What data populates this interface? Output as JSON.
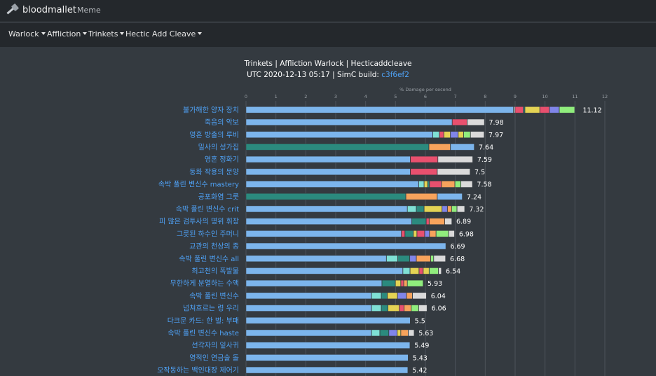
{
  "header": {
    "brand": "bloodmallet",
    "nav_link": "Meme"
  },
  "menus": [
    {
      "label": "Warlock"
    },
    {
      "label": "Affliction"
    },
    {
      "label": "Trinkets"
    },
    {
      "label": "Hectic Add Cleave"
    }
  ],
  "chart_data": {
    "type": "bar",
    "orientation": "horizontal",
    "stacked": true,
    "title": "Trinkets | Affliction Warlock | Hecticaddcleave",
    "subtitle_prefix": "UTC 2020-12-13 05:17 | SimC build: ",
    "build_link": "c3f6ef2",
    "xlabel": "% Damage per second",
    "xlim": [
      0,
      12
    ],
    "xticks": [
      "0",
      "1",
      "2",
      "3",
      "4",
      "5",
      "6",
      "7",
      "8",
      "9",
      "10",
      "11",
      "12"
    ],
    "colors": {
      "base": "#7cb5ec",
      "teal": "#2b8a7e",
      "orange": "#f7a35c",
      "red": "#e8506e",
      "gray": "#dadada",
      "yellow": "#e4d354",
      "lime": "#90ed7d",
      "purple": "#8085e9",
      "cyan": "#7fe0d5",
      "coral": "#f15c80",
      "darkgray": "#9aa0a6"
    },
    "categories": [
      "불가해한 양자 장치",
      "죽음의 악보",
      "영혼 방출의 루비",
      "밀사의 성가집",
      "영혼 정화기",
      "동화 작용의 문양",
      "속박 풀린 변신수 mastery",
      "공포화염 그룻",
      "속박 풀린 변신수 crit",
      "피 많은 검투사의 명위 휘장",
      "그릇된 하수인 주머니",
      "교관의 천상의 종",
      "속박 풀린 변신수 all",
      "최고천의 폭발물",
      "무한하게 분열하는 수액",
      "속박 풀린 변신수",
      "넘쳐흐르는 령 우리",
      "다크문 카드: 한 벌: 부패",
      "속박 풀린 변신수 haste",
      "선각자의 잎사귀",
      "영적인 연금술 돌",
      "오작동하는 백인대장 제어기"
    ],
    "values": [
      11.12,
      7.98,
      7.97,
      7.64,
      7.59,
      7.5,
      7.58,
      7.24,
      7.32,
      6.89,
      6.98,
      6.69,
      6.68,
      6.54,
      5.93,
      6.04,
      6.06,
      5.5,
      5.63,
      5.49,
      5.43,
      5.42
    ],
    "value_labels": [
      "11.12",
      "7.98",
      "7.97",
      "7.64",
      "7.59",
      "7.5",
      "7.58",
      "7.24",
      "7.32",
      "6.89",
      "6.98",
      "6.69",
      "6.68",
      "6.54",
      "5.93",
      "6.04",
      "6.06",
      "5.5",
      "5.63",
      "5.49",
      "5.43",
      "5.42"
    ],
    "segments": [
      [
        [
          "base",
          8.95
        ],
        [
          "gray",
          0.05
        ],
        [
          "red",
          0.28
        ],
        [
          "teal",
          0.05
        ],
        [
          "yellow",
          0.5
        ],
        [
          "red",
          0.32
        ],
        [
          "purple",
          0.33
        ],
        [
          "lime",
          0.52
        ]
      ],
      [
        [
          "base",
          6.9
        ],
        [
          "red",
          0.5
        ],
        [
          "gray",
          0.58
        ]
      ],
      [
        [
          "base",
          6.25
        ],
        [
          "cyan",
          0.22
        ],
        [
          "red",
          0.15
        ],
        [
          "yellow",
          0.22
        ],
        [
          "purple",
          0.26
        ],
        [
          "yellow",
          0.18
        ],
        [
          "lime",
          0.23
        ],
        [
          "gray",
          0.46
        ]
      ],
      [
        [
          "teal",
          6.12
        ],
        [
          "orange",
          0.72
        ],
        [
          "base",
          0.8
        ]
      ],
      [
        [
          "base",
          5.5
        ],
        [
          "red",
          0.92
        ],
        [
          "gray",
          1.17
        ]
      ],
      [
        [
          "base",
          5.5
        ],
        [
          "red",
          0.9
        ],
        [
          "gray",
          1.1
        ]
      ],
      [
        [
          "base",
          5.78
        ],
        [
          "cyan",
          0.18
        ],
        [
          "yellow",
          0.12
        ],
        [
          "teal",
          0.06
        ],
        [
          "red",
          0.4
        ],
        [
          "orange",
          0.45
        ],
        [
          "lime",
          0.2
        ],
        [
          "gray",
          0.39
        ]
      ],
      [
        [
          "teal",
          5.35
        ],
        [
          "orange",
          1.05
        ],
        [
          "base",
          0.84
        ]
      ],
      [
        [
          "base",
          5.4
        ],
        [
          "cyan",
          0.3
        ],
        [
          "teal",
          0.26
        ],
        [
          "yellow",
          0.6
        ],
        [
          "purple",
          0.18
        ],
        [
          "orange",
          0.14
        ],
        [
          "lime",
          0.18
        ],
        [
          "gray",
          0.26
        ]
      ],
      [
        [
          "base",
          5.55
        ],
        [
          "teal",
          0.48
        ],
        [
          "red",
          0.1
        ],
        [
          "orange",
          0.52
        ],
        [
          "gray",
          0.24
        ]
      ],
      [
        [
          "base",
          5.2
        ],
        [
          "red",
          0.12
        ],
        [
          "teal",
          0.28
        ],
        [
          "yellow",
          0.12
        ],
        [
          "red",
          0.26
        ],
        [
          "purple",
          0.16
        ],
        [
          "orange",
          0.22
        ],
        [
          "lime",
          0.42
        ],
        [
          "gray",
          0.2
        ]
      ],
      [
        [
          "base",
          6.69
        ]
      ],
      [
        [
          "base",
          4.7
        ],
        [
          "cyan",
          0.38
        ],
        [
          "teal",
          0.4
        ],
        [
          "purple",
          0.22
        ],
        [
          "orange",
          0.48
        ],
        [
          "lime",
          0.1
        ],
        [
          "gray",
          0.4
        ]
      ],
      [
        [
          "base",
          5.25
        ],
        [
          "cyan",
          0.24
        ],
        [
          "yellow",
          0.3
        ],
        [
          "red",
          0.14
        ],
        [
          "yellow",
          0.2
        ],
        [
          "lime",
          0.31
        ],
        [
          "gray",
          0.1
        ]
      ],
      [
        [
          "base",
          4.55
        ],
        [
          "teal",
          0.45
        ],
        [
          "yellow",
          0.18
        ],
        [
          "red",
          0.1
        ],
        [
          "orange",
          0.12
        ],
        [
          "lime",
          0.53
        ]
      ],
      [
        [
          "base",
          4.2
        ],
        [
          "cyan",
          0.33
        ],
        [
          "teal",
          0.2
        ],
        [
          "yellow",
          0.34
        ],
        [
          "purple",
          0.3
        ],
        [
          "orange",
          0.2
        ],
        [
          "gray",
          0.47
        ]
      ],
      [
        [
          "base",
          4.2
        ],
        [
          "cyan",
          0.33
        ],
        [
          "teal",
          0.22
        ],
        [
          "yellow",
          0.38
        ],
        [
          "red",
          0.16
        ],
        [
          "orange",
          0.24
        ],
        [
          "lime",
          0.25
        ],
        [
          "gray",
          0.28
        ]
      ],
      [
        [
          "base",
          5.5
        ]
      ],
      [
        [
          "base",
          4.2
        ],
        [
          "cyan",
          0.28
        ],
        [
          "teal",
          0.3
        ],
        [
          "purple",
          0.28
        ],
        [
          "yellow",
          0.12
        ],
        [
          "orange",
          0.25
        ],
        [
          "gray",
          0.2
        ]
      ],
      [
        [
          "base",
          5.49
        ]
      ],
      [
        [
          "base",
          5.43
        ]
      ],
      [
        [
          "base",
          5.42
        ]
      ]
    ]
  }
}
